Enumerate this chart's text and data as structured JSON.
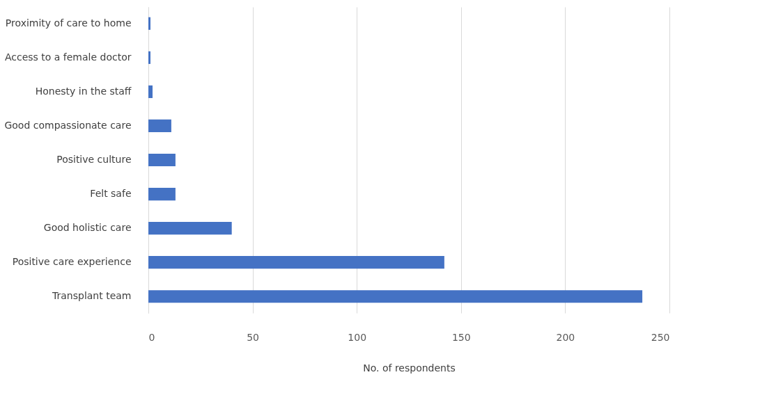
{
  "chart_data": {
    "type": "bar",
    "orientation": "horizontal",
    "xlabel": "No. of respondents",
    "categories": [
      "Proximity of care to home",
      "Access to a female doctor",
      "Honesty in the staff",
      "Good compassionate care",
      "Positive culture",
      "Felt safe",
      "Good holistic care",
      "Positive care experience",
      "Transplant team"
    ],
    "values": [
      1,
      1,
      2,
      11,
      13,
      13,
      40,
      142,
      237
    ],
    "color": "#4472c4",
    "xlim": [
      0,
      250
    ],
    "xticks": [
      0,
      50,
      100,
      150,
      200,
      250
    ],
    "grid": "x"
  }
}
